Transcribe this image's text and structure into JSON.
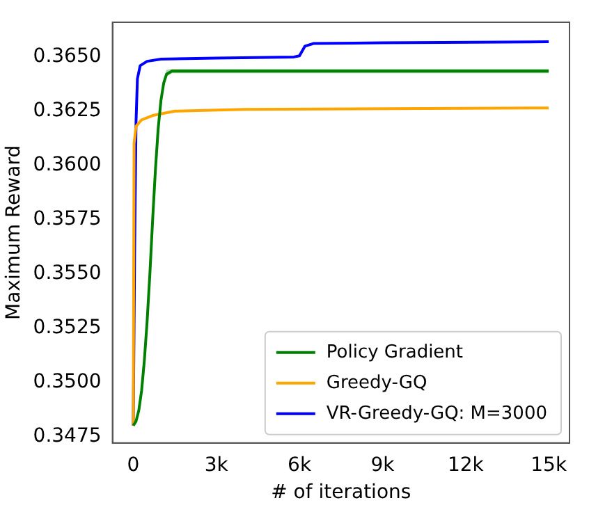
{
  "chart_data": {
    "type": "line",
    "xlabel": "# of iterations",
    "ylabel": "Maximum Reward",
    "xlim": [
      -750,
      15750
    ],
    "xticks": [
      0,
      {
        "value": 3000,
        "label": "3k"
      },
      {
        "value": 6000,
        "label": "6k"
      },
      {
        "value": 9000,
        "label": "9k"
      },
      {
        "value": 12000,
        "label": "12k"
      },
      {
        "value": 15000,
        "label": "15k"
      }
    ],
    "ylim": [
      0.3472,
      0.3666
    ],
    "yticks": [
      0.3475,
      {
        "value": 0.35,
        "label": "0.3500"
      },
      0.3525,
      {
        "value": 0.355,
        "label": "0.3550"
      },
      0.3575,
      {
        "value": 0.36,
        "label": "0.3600"
      },
      0.3625,
      {
        "value": 0.365,
        "label": "0.3650"
      }
    ],
    "grid": false,
    "legend": "bottom right",
    "marker": "none",
    "line_style": "solid",
    "series": [
      {
        "name": "Policy Gradient",
        "color": "#008000",
        "x": [
          0,
          100,
          200,
          300,
          400,
          500,
          600,
          700,
          800,
          900,
          1000,
          1100,
          1200,
          1400,
          2000,
          15000
        ],
        "values": [
          0.348,
          0.3482,
          0.3487,
          0.3496,
          0.351,
          0.3528,
          0.355,
          0.3575,
          0.3598,
          0.3617,
          0.363,
          0.3638,
          0.3642,
          0.36435,
          0.36435,
          0.36435
        ],
        "lower": [
          0.348,
          0.3482,
          0.3487,
          0.3496,
          0.351,
          0.3528,
          0.355,
          0.3575,
          0.3598,
          0.3615,
          0.3628,
          0.3636,
          0.3641,
          0.36425,
          0.36425,
          0.36425
        ],
        "upper": [
          0.348,
          0.3482,
          0.3487,
          0.3496,
          0.351,
          0.3528,
          0.355,
          0.3575,
          0.3598,
          0.3619,
          0.3632,
          0.364,
          0.3644,
          0.36445,
          0.36445,
          0.36445
        ]
      },
      {
        "name": "Greedy-GQ",
        "color": "#ffa500",
        "x": [
          0,
          30,
          100,
          300,
          700,
          1500,
          4000,
          15000
        ],
        "values": [
          0.348,
          0.361,
          0.3618,
          0.3621,
          0.3623,
          0.3625,
          0.36258,
          0.36265
        ]
      },
      {
        "name": "VR-Greedy-GQ: M=3000",
        "color": "#0000ff",
        "x": [
          0,
          50,
          100,
          150,
          250,
          500,
          1000,
          3000,
          5800,
          6000,
          6200,
          6500,
          9000,
          15000
        ],
        "values": [
          0.348,
          0.356,
          0.362,
          0.364,
          0.3646,
          0.3648,
          0.3649,
          0.36495,
          0.365,
          0.36505,
          0.3655,
          0.36562,
          0.36565,
          0.3657
        ]
      }
    ]
  }
}
